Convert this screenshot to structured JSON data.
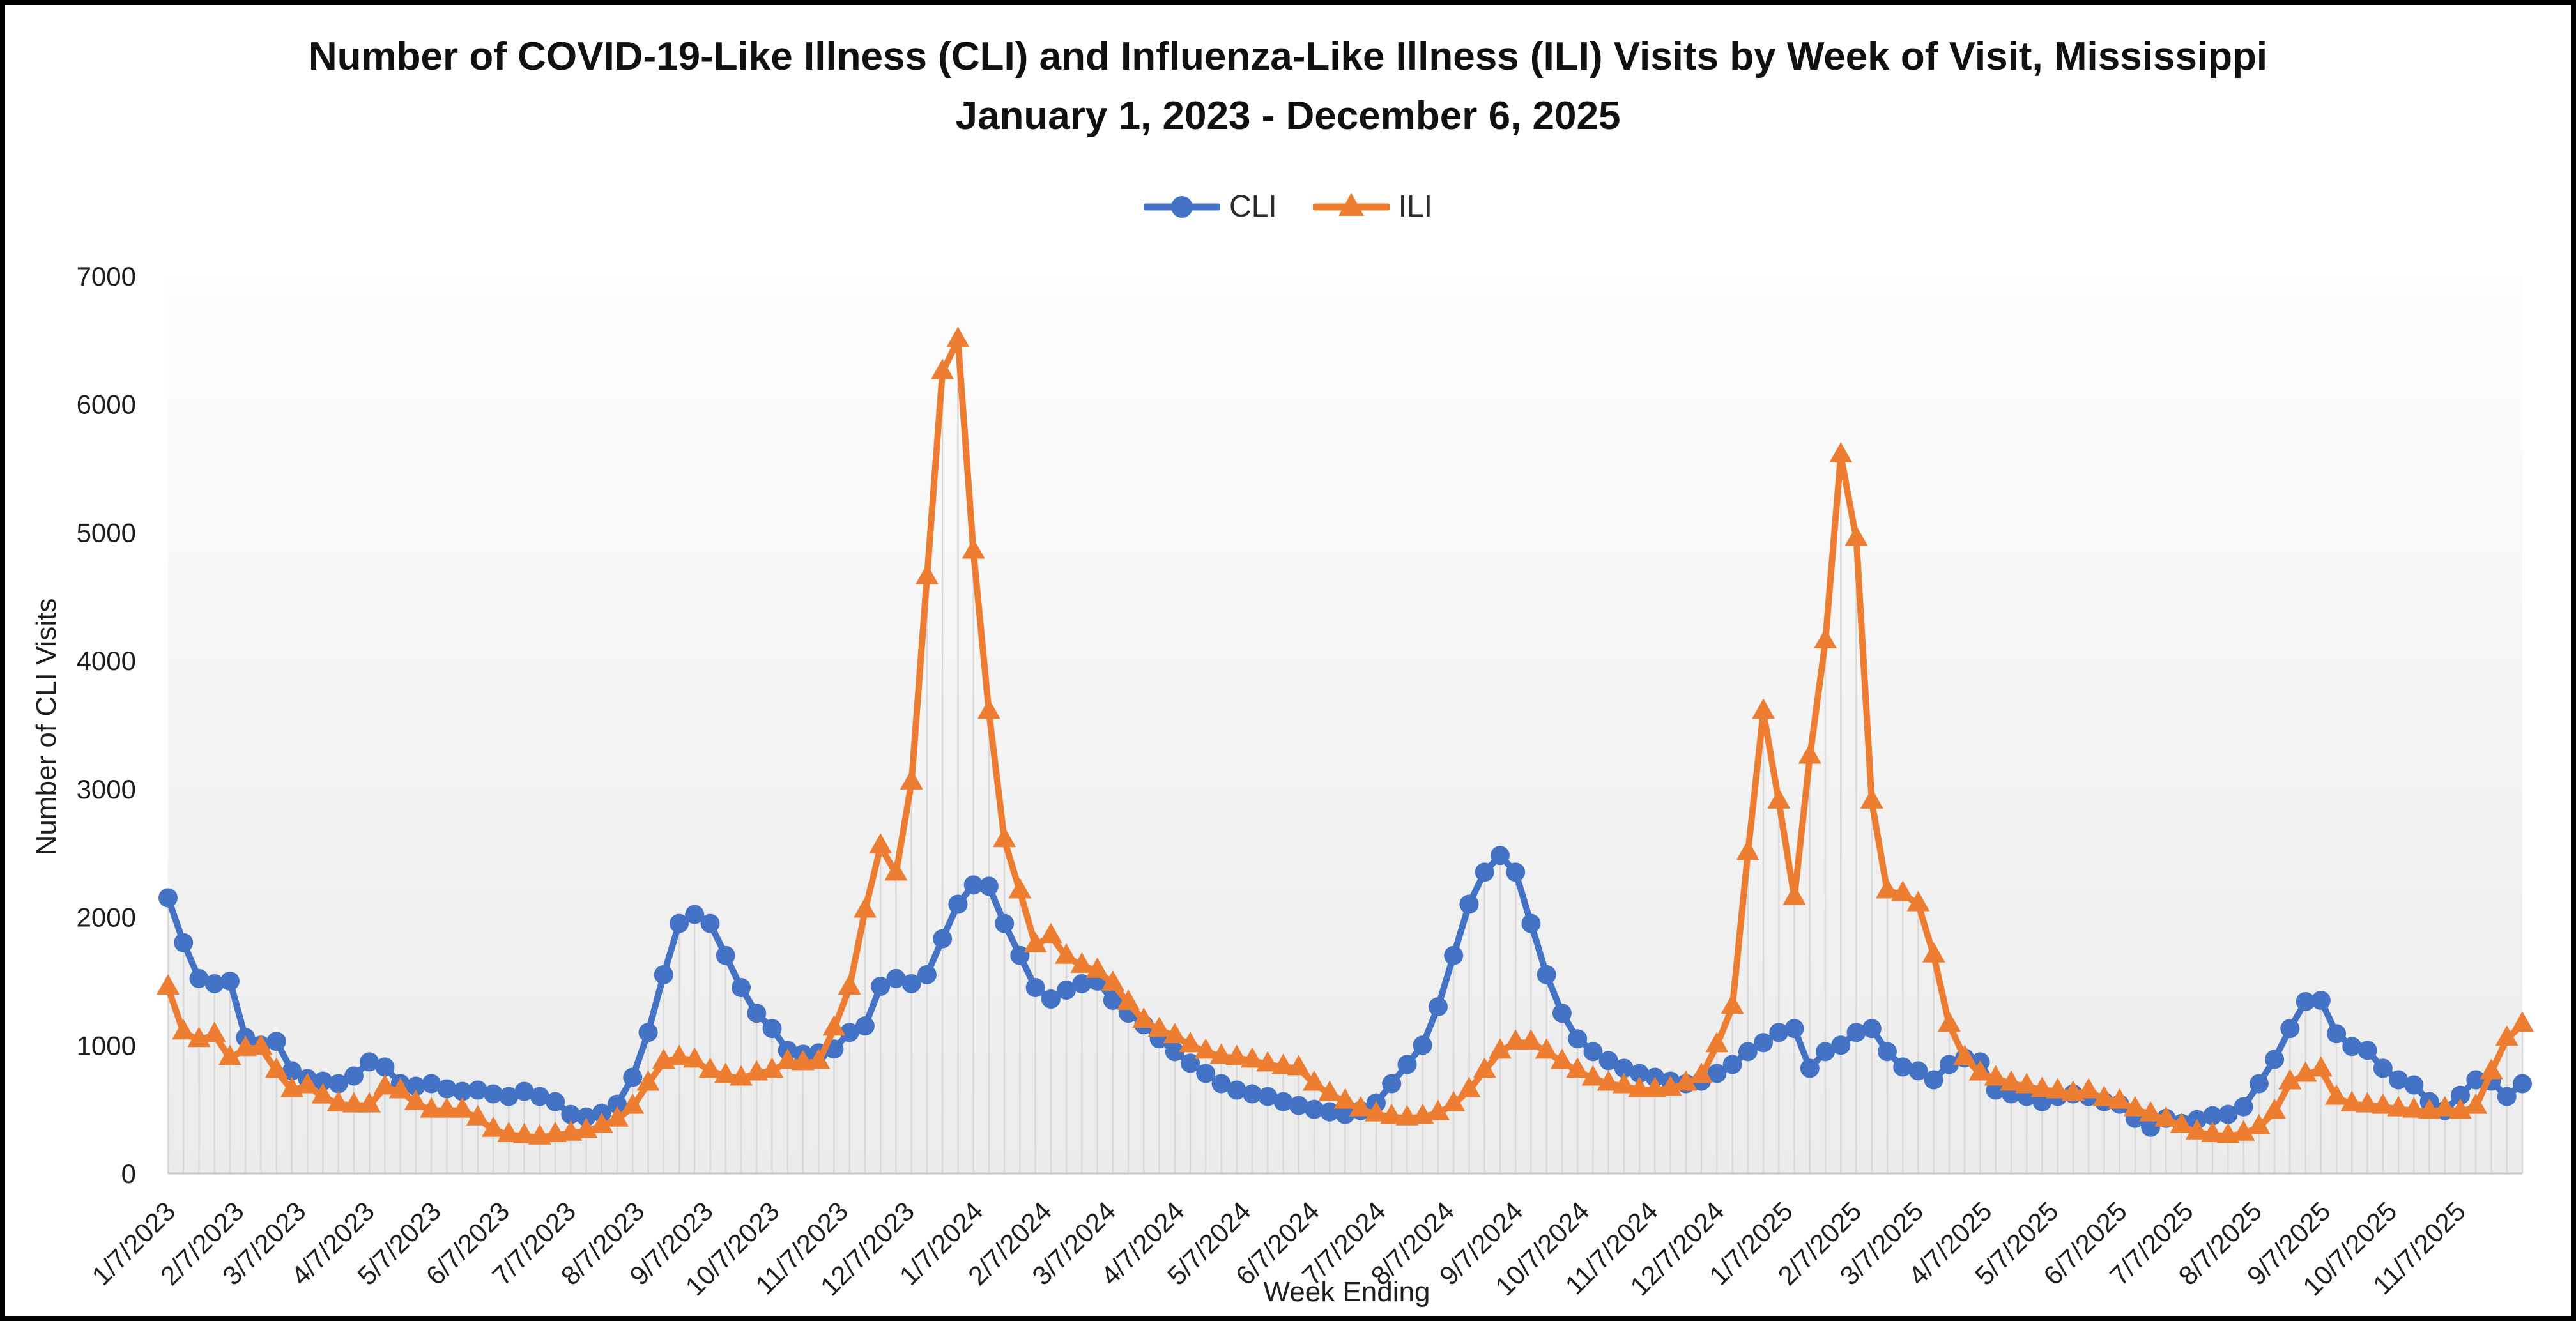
{
  "title": {
    "text": "Number of COVID-19-Like Illness (CLI) and Influenza-Like Illness (ILI) Visits by Week of Visit, Mississippi January 1, 2023 - December 6, 2025"
  },
  "legend": {
    "items": [
      {
        "label": "CLI",
        "color": "#4472C4",
        "marker": "circle"
      },
      {
        "label": "ILI",
        "color": "#ED7D31",
        "marker": "triangle"
      }
    ]
  },
  "chart_data": {
    "type": "line",
    "title": "Number of COVID-19-Like Illness (CLI) and Influenza-Like Illness (ILI) Visits by Week of Visit, Mississippi January 1, 2023 - December 6, 2025",
    "xlabel": "Week Ending",
    "ylabel": "Number of CLI Visits",
    "ylim": [
      0,
      7000
    ],
    "y_ticks": [
      0,
      1000,
      2000,
      3000,
      4000,
      5000,
      6000,
      7000
    ],
    "grid": "off",
    "legend_position": "top",
    "x_tick_labels": [
      "1/7/2023",
      "2/7/2023",
      "3/7/2023",
      "4/7/2023",
      "5/7/2023",
      "6/7/2023",
      "7/7/2023",
      "8/7/2023",
      "9/7/2023",
      "10/7/2023",
      "11/7/2023",
      "12/7/2023",
      "1/7/2024",
      "2/7/2024",
      "3/7/2024",
      "4/7/2024",
      "5/7/2024",
      "6/7/2024",
      "7/7/2024",
      "8/7/2024",
      "9/7/2024",
      "10/7/2024",
      "11/7/2024",
      "12/7/2024",
      "1/7/2025",
      "2/7/2025",
      "3/7/2025",
      "4/7/2025",
      "5/7/2025",
      "6/7/2025",
      "7/7/2025",
      "8/7/2025",
      "9/7/2025",
      "10/7/2025",
      "11/7/2025"
    ],
    "x": [
      "1/7/2023",
      "1/14/2023",
      "1/21/2023",
      "1/28/2023",
      "2/4/2023",
      "2/11/2023",
      "2/18/2023",
      "2/25/2023",
      "3/4/2023",
      "3/11/2023",
      "3/18/2023",
      "3/25/2023",
      "4/1/2023",
      "4/8/2023",
      "4/15/2023",
      "4/22/2023",
      "4/29/2023",
      "5/6/2023",
      "5/13/2023",
      "5/20/2023",
      "5/27/2023",
      "6/3/2023",
      "6/10/2023",
      "6/17/2023",
      "6/24/2023",
      "7/1/2023",
      "7/8/2023",
      "7/15/2023",
      "7/22/2023",
      "7/29/2023",
      "8/5/2023",
      "8/12/2023",
      "8/19/2023",
      "8/26/2023",
      "9/2/2023",
      "9/9/2023",
      "9/16/2023",
      "9/23/2023",
      "9/30/2023",
      "10/7/2023",
      "10/14/2023",
      "10/21/2023",
      "10/28/2023",
      "11/4/2023",
      "11/11/2023",
      "11/18/2023",
      "11/25/2023",
      "12/2/2023",
      "12/9/2023",
      "12/16/2023",
      "12/23/2023",
      "12/30/2023",
      "1/6/2024",
      "1/13/2024",
      "1/20/2024",
      "1/27/2024",
      "2/3/2024",
      "2/10/2024",
      "2/17/2024",
      "2/24/2024",
      "3/2/2024",
      "3/9/2024",
      "3/16/2024",
      "3/23/2024",
      "3/30/2024",
      "4/6/2024",
      "4/13/2024",
      "4/20/2024",
      "4/27/2024",
      "5/4/2024",
      "5/11/2024",
      "5/18/2024",
      "5/25/2024",
      "6/1/2024",
      "6/8/2024",
      "6/15/2024",
      "6/22/2024",
      "6/29/2024",
      "7/6/2024",
      "7/13/2024",
      "7/20/2024",
      "7/27/2024",
      "8/3/2024",
      "8/10/2024",
      "8/17/2024",
      "8/24/2024",
      "8/31/2024",
      "9/7/2024",
      "9/14/2024",
      "9/21/2024",
      "9/28/2024",
      "10/5/2024",
      "10/12/2024",
      "10/19/2024",
      "10/26/2024",
      "11/2/2024",
      "11/9/2024",
      "11/16/2024",
      "11/23/2024",
      "11/30/2024",
      "12/7/2024",
      "12/14/2024",
      "12/21/2024",
      "12/28/2024",
      "1/4/2025",
      "1/11/2025",
      "1/18/2025",
      "1/25/2025",
      "2/1/2025",
      "2/8/2025",
      "2/15/2025",
      "2/22/2025",
      "3/1/2025",
      "3/8/2025",
      "3/15/2025",
      "3/22/2025",
      "3/29/2025",
      "4/5/2025",
      "4/12/2025",
      "4/19/2025",
      "4/26/2025",
      "5/3/2025",
      "5/10/2025",
      "5/17/2025",
      "5/24/2025",
      "5/31/2025",
      "6/7/2025",
      "6/14/2025",
      "6/21/2025",
      "6/28/2025",
      "7/5/2025",
      "7/12/2025",
      "7/19/2025",
      "7/26/2025",
      "8/2/2025",
      "8/9/2025",
      "8/16/2025",
      "8/23/2025",
      "8/30/2025",
      "9/6/2025",
      "9/13/2025",
      "9/20/2025",
      "9/27/2025",
      "10/4/2025",
      "10/11/2025",
      "10/18/2025",
      "10/25/2025",
      "11/1/2025",
      "11/8/2025",
      "11/15/2025",
      "11/22/2025",
      "11/29/2025",
      "12/6/2025"
    ],
    "series": [
      {
        "name": "CLI",
        "color": "#4472C4",
        "marker": "circle",
        "values": [
          2150,
          1800,
          1520,
          1480,
          1500,
          1060,
          1000,
          1030,
          800,
          740,
          720,
          700,
          760,
          870,
          830,
          700,
          680,
          700,
          660,
          640,
          650,
          620,
          600,
          640,
          600,
          560,
          460,
          440,
          470,
          540,
          750,
          1100,
          1550,
          1950,
          2020,
          1950,
          1700,
          1450,
          1250,
          1130,
          960,
          930,
          940,
          970,
          1100,
          1150,
          1460,
          1520,
          1480,
          1550,
          1830,
          2100,
          2250,
          2240,
          1950,
          1700,
          1450,
          1360,
          1430,
          1480,
          1500,
          1350,
          1250,
          1160,
          1050,
          950,
          860,
          780,
          700,
          650,
          620,
          600,
          560,
          530,
          500,
          480,
          460,
          490,
          550,
          700,
          850,
          1000,
          1300,
          1700,
          2100,
          2350,
          2480,
          2350,
          1950,
          1550,
          1250,
          1050,
          950,
          880,
          820,
          780,
          750,
          720,
          700,
          720,
          780,
          850,
          950,
          1020,
          1100,
          1130,
          820,
          950,
          1000,
          1100,
          1130,
          950,
          830,
          800,
          730,
          850,
          900,
          870,
          650,
          620,
          600,
          560,
          600,
          620,
          600,
          560,
          540,
          430,
          360,
          430,
          390,
          420,
          450,
          460,
          520,
          700,
          890,
          1130,
          1340,
          1350,
          1090,
          990,
          960,
          820,
          730,
          690,
          560,
          490,
          610,
          730,
          720,
          600,
          700
        ]
      },
      {
        "name": "ILI",
        "color": "#ED7D31",
        "marker": "triangle",
        "values": [
          1450,
          1100,
          1040,
          1080,
          900,
          970,
          980,
          800,
          650,
          680,
          600,
          540,
          530,
          530,
          670,
          640,
          550,
          490,
          490,
          490,
          430,
          340,
          300,
          290,
          280,
          300,
          310,
          330,
          370,
          420,
          520,
          700,
          870,
          900,
          880,
          800,
          760,
          740,
          780,
          800,
          870,
          860,
          870,
          1130,
          1450,
          2050,
          2550,
          2340,
          3050,
          4650,
          6250,
          6500,
          4850,
          3600,
          2600,
          2200,
          1780,
          1850,
          1690,
          1620,
          1580,
          1480,
          1330,
          1190,
          1120,
          1070,
          1000,
          950,
          910,
          900,
          880,
          850,
          830,
          820,
          700,
          620,
          560,
          500,
          460,
          440,
          430,
          440,
          470,
          540,
          650,
          800,
          950,
          1020,
          1020,
          950,
          870,
          800,
          740,
          700,
          680,
          650,
          650,
          660,
          700,
          760,
          1000,
          1300,
          2500,
          3600,
          2900,
          2150,
          3250,
          4150,
          5600,
          4950,
          2900,
          2200,
          2180,
          2100,
          1700,
          1160,
          900,
          780,
          740,
          700,
          680,
          650,
          640,
          620,
          640,
          580,
          560,
          500,
          460,
          420,
          370,
          320,
          300,
          290,
          310,
          360,
          480,
          710,
          770,
          810,
          590,
          540,
          530,
          520,
          500,
          490,
          480,
          500,
          480,
          520,
          790,
          1050,
          1160
        ]
      }
    ],
    "colors": {
      "plot_bg_top": "#fdfdfd",
      "plot_bg_bottom": "#ebebeb",
      "drop_line": "#d9d9d9",
      "axis_line": "#c6c6c6",
      "tick_text": "#1f1f1f"
    }
  }
}
